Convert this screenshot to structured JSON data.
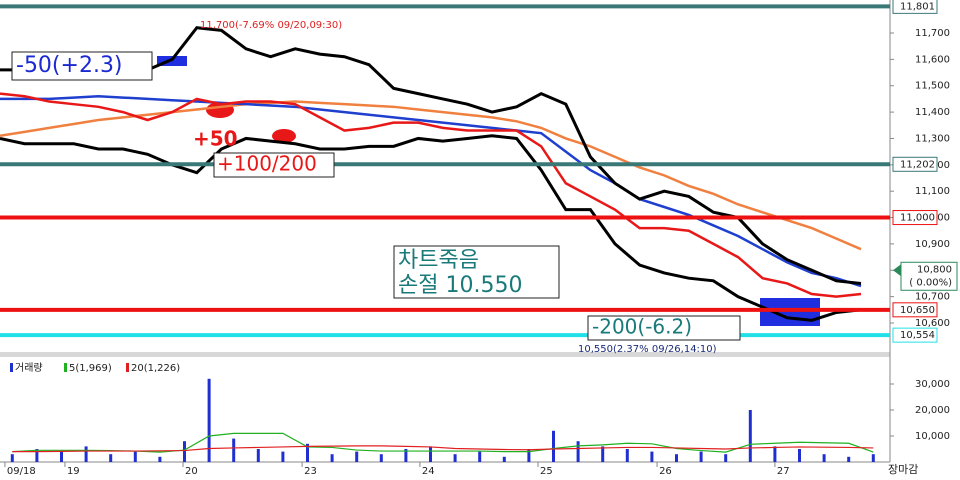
{
  "chart_data": [
    {
      "type": "line",
      "x": [
        0,
        1,
        2,
        3,
        4,
        5,
        6,
        7,
        8,
        9,
        10,
        11,
        12,
        13,
        14,
        15,
        16,
        17,
        18,
        19,
        20,
        21,
        22,
        23,
        24,
        25,
        26,
        27,
        28,
        29,
        30,
        31,
        32,
        33,
        34,
        35
      ],
      "xlim": [
        0,
        36
      ],
      "xticks": [
        {
          "value": 0.2,
          "label": "09/18"
        },
        {
          "value": 2.64,
          "label": "19"
        },
        {
          "value": 7.44,
          "label": "20"
        },
        {
          "value": 12.28,
          "label": "23"
        },
        {
          "value": 17.07,
          "label": "24"
        },
        {
          "value": 21.87,
          "label": "25"
        },
        {
          "value": 26.71,
          "label": "26"
        },
        {
          "value": 31.5,
          "label": "27"
        }
      ],
      "ylim": [
        10490,
        11810
      ],
      "yticks": [
        {
          "value": 10600,
          "label": "10,600"
        },
        {
          "value": 10700,
          "label": "10,700"
        },
        {
          "value": 10800,
          "label": "10,800"
        },
        {
          "value": 10900,
          "label": "10,900"
        },
        {
          "value": 11000,
          "label": "11,000"
        },
        {
          "value": 11100,
          "label": "11,100"
        },
        {
          "value": 11200,
          "label": "11,200"
        },
        {
          "value": 11300,
          "label": "11,300"
        },
        {
          "value": 11400,
          "label": "11,400"
        },
        {
          "value": 11500,
          "label": "11,500"
        },
        {
          "value": 11600,
          "label": "11,600"
        },
        {
          "value": 11700,
          "label": "11,700"
        }
      ],
      "series": [
        {
          "color": "#f08040",
          "values": [
            11310,
            11325,
            11340,
            11355,
            11370,
            11380,
            11390,
            11400,
            11410,
            11420,
            11430,
            11435,
            11440,
            11435,
            11430,
            11425,
            11420,
            11410,
            11400,
            11390,
            11380,
            11365,
            11340,
            11300,
            11270,
            11230,
            11190,
            11160,
            11120,
            11090,
            11050,
            11020,
            10990,
            10960,
            10920,
            10880
          ]
        },
        {
          "color": "#1f3fcf",
          "values": [
            11450,
            11450,
            11450,
            11455,
            11460,
            11455,
            11450,
            11445,
            11440,
            11435,
            11430,
            11425,
            11420,
            11410,
            11400,
            11390,
            11380,
            11370,
            11360,
            11350,
            11340,
            11330,
            11320,
            11250,
            11180,
            11130,
            11070,
            11040,
            11010,
            10970,
            10930,
            10880,
            10830,
            10790,
            10770,
            10740
          ]
        },
        {
          "color": "#e81818",
          "values": [
            11470,
            11460,
            11440,
            11430,
            11420,
            11400,
            11370,
            11400,
            11450,
            11430,
            11440,
            11440,
            11430,
            11380,
            11330,
            11340,
            11360,
            11360,
            11340,
            11330,
            11330,
            11330,
            11270,
            11130,
            11080,
            11030,
            10960,
            10960,
            10950,
            10900,
            10850,
            10770,
            10750,
            10710,
            10700,
            10710
          ]
        },
        {
          "color": "#000000",
          "values": [
            11560,
            11560,
            11570,
            11570,
            11560,
            11560,
            11560,
            11600,
            11720,
            11710,
            11640,
            11610,
            11640,
            11620,
            11610,
            11580,
            11490,
            11470,
            11450,
            11430,
            11400,
            11420,
            11470,
            11430,
            11230,
            11130,
            11070,
            11100,
            11080,
            11020,
            11000,
            10900,
            10840,
            10800,
            10760,
            10750
          ]
        },
        {
          "color": "#000000",
          "values": [
            11300,
            11280,
            11280,
            11280,
            11260,
            11260,
            11240,
            11200,
            11170,
            11260,
            11300,
            11290,
            11280,
            11260,
            11260,
            11270,
            11270,
            11300,
            11290,
            11300,
            11310,
            11300,
            11180,
            11030,
            11030,
            10900,
            10820,
            10790,
            10770,
            10760,
            10700,
            10660,
            10620,
            10610,
            10640,
            10650
          ]
        }
      ],
      "hlines": [
        {
          "value": 11801,
          "label": "11,801",
          "color": "#3a7878"
        },
        {
          "value": 11202,
          "label": "11,202",
          "color": "#3a7878"
        },
        {
          "value": 11000,
          "label": "11,000",
          "color": "#ee1111"
        },
        {
          "value": 10650,
          "label": "10,650",
          "color": "#ee1111"
        },
        {
          "value": 10554,
          "label": "10,554",
          "color": "#22e0e8"
        }
      ],
      "last_price": {
        "value": 10800,
        "label": "10,800",
        "change": "( 0.00%)"
      },
      "annotations": [
        "-50(+2.3)",
        "+50",
        "+100/200",
        "차트죽음",
        "손절 10.550",
        "-200(-6.2)",
        "11,700(-7.69% 09/20,09:30)",
        "10,550(2.37% 09/26,14:10)"
      ]
    },
    {
      "type": "bar",
      "xlim": [
        0,
        36
      ],
      "ylim": [
        0,
        40000
      ],
      "yticks": [
        {
          "value": 10000,
          "label": "10,000"
        },
        {
          "value": 20000,
          "label": "20,000"
        },
        {
          "value": 30000,
          "label": "30,000"
        }
      ],
      "series": [
        {
          "name": "거래량",
          "color": "#2030d0",
          "values": [
            3000,
            5000,
            4000,
            6000,
            3000,
            4000,
            2000,
            8000,
            32000,
            9000,
            5000,
            4000,
            7000,
            3000,
            4000,
            3000,
            5000,
            6000,
            3000,
            4000,
            2000,
            5000,
            12000,
            8000,
            6000,
            5000,
            4000,
            3000,
            4000,
            3000,
            20000,
            6000,
            5000,
            3000,
            2000,
            3000
          ]
        },
        {
          "name": "5(1,969)",
          "color": "#20b020",
          "values": [
            4000,
            4500,
            4500,
            4500,
            4400,
            4200,
            3800,
            4600,
            10000,
            11000,
            11000,
            11000,
            5800,
            5600,
            4600,
            4200,
            4200,
            4200,
            4200,
            4200,
            4000,
            4000,
            5200,
            6200,
            6600,
            7200,
            7000,
            5200,
            4400,
            3800,
            6800,
            7200,
            7600,
            7400,
            7200,
            3800
          ]
        },
        {
          "name": "20(1,226)",
          "color": "#e02020",
          "values": [
            4000,
            4000,
            4100,
            4200,
            4200,
            4200,
            4300,
            4400,
            5200,
            5400,
            5600,
            5800,
            6000,
            6100,
            6200,
            6200,
            6000,
            5800,
            5200,
            5000,
            4800,
            4700,
            5000,
            5200,
            5400,
            5600,
            5600,
            5400,
            5200,
            5000,
            5400,
            5600,
            5800,
            5700,
            5600,
            5400
          ]
        }
      ]
    }
  ],
  "close_label": "장마감"
}
